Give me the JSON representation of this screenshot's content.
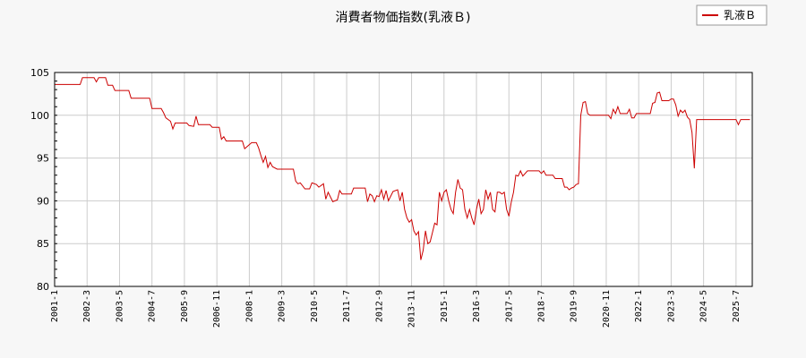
{
  "chart_data": {
    "type": "line",
    "title": "消費者物価指数(乳液Ｂ)",
    "xlabel": "",
    "ylabel": "",
    "ylim": [
      80,
      105
    ],
    "yticks": [
      80,
      85,
      90,
      95,
      100,
      105
    ],
    "xlim": [
      "2001-01",
      "2026-02"
    ],
    "xticks": [
      "2001-1",
      "2002-3",
      "2003-5",
      "2004-7",
      "2005-9",
      "2006-11",
      "2008-1",
      "2009-3",
      "2010-5",
      "2011-7",
      "2012-9",
      "2013-11",
      "2015-1",
      "2016-3",
      "2017-5",
      "2018-7",
      "2019-9",
      "2020-11",
      "2022-1",
      "2023-3",
      "2024-5",
      "2025-7"
    ],
    "grid": true,
    "legend_position": "top-right",
    "series": [
      {
        "name": "乳液Ｂ",
        "color": "#cc0000",
        "points": [
          [
            "2001-01",
            103.6
          ],
          [
            "2001-12",
            103.6
          ],
          [
            "2002-01",
            104.4
          ],
          [
            "2002-06",
            104.4
          ],
          [
            "2002-07",
            103.9
          ],
          [
            "2002-08",
            104.4
          ],
          [
            "2002-11",
            104.4
          ],
          [
            "2002-12",
            103.5
          ],
          [
            "2003-02",
            103.5
          ],
          [
            "2003-03",
            102.9
          ],
          [
            "2003-09",
            102.9
          ],
          [
            "2003-10",
            102.0
          ],
          [
            "2004-06",
            102.0
          ],
          [
            "2004-07",
            100.8
          ],
          [
            "2004-11",
            100.8
          ],
          [
            "2004-12",
            100.3
          ],
          [
            "2005-01",
            99.7
          ],
          [
            "2005-03",
            99.3
          ],
          [
            "2005-04",
            98.4
          ],
          [
            "2005-05",
            99.1
          ],
          [
            "2005-10",
            99.1
          ],
          [
            "2005-11",
            98.8
          ],
          [
            "2006-01",
            98.7
          ],
          [
            "2006-02",
            99.9
          ],
          [
            "2006-03",
            98.9
          ],
          [
            "2006-08",
            98.9
          ],
          [
            "2006-09",
            98.6
          ],
          [
            "2006-12",
            98.6
          ],
          [
            "2007-01",
            97.2
          ],
          [
            "2007-02",
            97.5
          ],
          [
            "2007-03",
            97.0
          ],
          [
            "2007-10",
            97.0
          ],
          [
            "2007-11",
            96.1
          ],
          [
            "2008-02",
            96.8
          ],
          [
            "2008-04",
            96.8
          ],
          [
            "2008-05",
            96.2
          ],
          [
            "2008-06",
            95.3
          ],
          [
            "2008-07",
            94.5
          ],
          [
            "2008-08",
            95.2
          ],
          [
            "2008-09",
            93.9
          ],
          [
            "2008-10",
            94.5
          ],
          [
            "2008-11",
            94.0
          ],
          [
            "2009-01",
            93.7
          ],
          [
            "2009-08",
            93.7
          ],
          [
            "2009-09",
            92.3
          ],
          [
            "2009-10",
            92.0
          ],
          [
            "2009-11",
            92.1
          ],
          [
            "2010-01",
            91.4
          ],
          [
            "2010-03",
            91.4
          ],
          [
            "2010-04",
            92.1
          ],
          [
            "2010-06",
            91.9
          ],
          [
            "2010-07",
            91.6
          ],
          [
            "2010-09",
            92.0
          ],
          [
            "2010-10",
            90.2
          ],
          [
            "2010-11",
            91.0
          ],
          [
            "2011-01",
            89.9
          ],
          [
            "2011-03",
            90.1
          ],
          [
            "2011-04",
            91.2
          ],
          [
            "2011-05",
            90.8
          ],
          [
            "2011-09",
            90.8
          ],
          [
            "2011-10",
            91.5
          ],
          [
            "2012-03",
            91.5
          ],
          [
            "2012-04",
            89.9
          ],
          [
            "2012-05",
            90.8
          ],
          [
            "2012-06",
            90.6
          ],
          [
            "2012-07",
            89.9
          ],
          [
            "2012-08",
            90.6
          ],
          [
            "2012-09",
            90.5
          ],
          [
            "2012-10",
            91.3
          ],
          [
            "2012-11",
            90.2
          ],
          [
            "2012-12",
            91.2
          ],
          [
            "2013-01",
            90.0
          ],
          [
            "2013-03",
            91.1
          ],
          [
            "2013-05",
            91.3
          ],
          [
            "2013-06",
            90.0
          ],
          [
            "2013-07",
            91.0
          ],
          [
            "2013-08",
            89.0
          ],
          [
            "2013-09",
            88.0
          ],
          [
            "2013-10",
            87.5
          ],
          [
            "2013-11",
            87.8
          ],
          [
            "2013-12",
            86.5
          ],
          [
            "2014-01",
            86.0
          ],
          [
            "2014-02",
            86.4
          ],
          [
            "2014-03",
            83.1
          ],
          [
            "2014-04",
            84.2
          ],
          [
            "2014-05",
            86.5
          ],
          [
            "2014-06",
            85.0
          ],
          [
            "2014-07",
            85.2
          ],
          [
            "2014-08",
            86.3
          ],
          [
            "2014-09",
            87.4
          ],
          [
            "2014-10",
            87.2
          ],
          [
            "2014-11",
            91.0
          ],
          [
            "2014-12",
            90.0
          ],
          [
            "2015-01",
            91.0
          ],
          [
            "2015-02",
            91.3
          ],
          [
            "2015-03",
            90.0
          ],
          [
            "2015-04",
            89.0
          ],
          [
            "2015-05",
            88.5
          ],
          [
            "2015-06",
            91.0
          ],
          [
            "2015-07",
            92.5
          ],
          [
            "2015-08",
            91.5
          ],
          [
            "2015-09",
            91.3
          ],
          [
            "2015-10",
            89.0
          ],
          [
            "2015-11",
            88.0
          ],
          [
            "2015-12",
            89.0
          ],
          [
            "2016-01",
            88.0
          ],
          [
            "2016-02",
            87.2
          ],
          [
            "2016-03",
            89.0
          ],
          [
            "2016-04",
            90.2
          ],
          [
            "2016-05",
            88.5
          ],
          [
            "2016-06",
            89.0
          ],
          [
            "2016-07",
            91.3
          ],
          [
            "2016-08",
            90.2
          ],
          [
            "2016-09",
            91.0
          ],
          [
            "2016-10",
            89.0
          ],
          [
            "2016-11",
            88.7
          ],
          [
            "2016-12",
            91.0
          ],
          [
            "2017-01",
            91.0
          ],
          [
            "2017-02",
            90.8
          ],
          [
            "2017-03",
            91.0
          ],
          [
            "2017-04",
            89.0
          ],
          [
            "2017-05",
            88.2
          ],
          [
            "2017-06",
            89.8
          ],
          [
            "2017-07",
            91.0
          ],
          [
            "2017-08",
            93.0
          ],
          [
            "2017-09",
            92.9
          ],
          [
            "2017-10",
            93.5
          ],
          [
            "2017-11",
            92.9
          ],
          [
            "2018-01",
            93.5
          ],
          [
            "2018-06",
            93.5
          ],
          [
            "2018-07",
            93.2
          ],
          [
            "2018-08",
            93.5
          ],
          [
            "2018-09",
            93.0
          ],
          [
            "2018-12",
            93.0
          ],
          [
            "2019-01",
            92.6
          ],
          [
            "2019-04",
            92.6
          ],
          [
            "2019-05",
            91.6
          ],
          [
            "2019-06",
            91.6
          ],
          [
            "2019-07",
            91.3
          ],
          [
            "2019-08",
            91.5
          ],
          [
            "2019-09",
            91.6
          ],
          [
            "2019-10",
            91.9
          ],
          [
            "2019-11",
            92.0
          ],
          [
            "2019-12",
            100.0
          ],
          [
            "2020-01",
            101.5
          ],
          [
            "2020-02",
            101.6
          ],
          [
            "2020-03",
            100.2
          ],
          [
            "2020-04",
            100.0
          ],
          [
            "2020-12",
            100.0
          ],
          [
            "2021-01",
            99.6
          ],
          [
            "2021-02",
            100.7
          ],
          [
            "2021-03",
            100.2
          ],
          [
            "2021-04",
            101.0
          ],
          [
            "2021-05",
            100.2
          ],
          [
            "2021-08",
            100.2
          ],
          [
            "2021-09",
            100.7
          ],
          [
            "2021-10",
            99.7
          ],
          [
            "2021-11",
            99.7
          ],
          [
            "2021-12",
            100.2
          ],
          [
            "2022-06",
            100.2
          ],
          [
            "2022-07",
            101.4
          ],
          [
            "2022-08",
            101.5
          ],
          [
            "2022-09",
            102.6
          ],
          [
            "2022-10",
            102.7
          ],
          [
            "2022-11",
            101.7
          ],
          [
            "2023-02",
            101.7
          ],
          [
            "2023-03",
            101.9
          ],
          [
            "2023-04",
            101.9
          ],
          [
            "2023-05",
            101.2
          ],
          [
            "2023-06",
            99.9
          ],
          [
            "2023-07",
            100.6
          ],
          [
            "2023-08",
            100.3
          ],
          [
            "2023-09",
            100.6
          ],
          [
            "2023-10",
            99.8
          ],
          [
            "2023-11",
            99.5
          ],
          [
            "2023-12",
            98.0
          ],
          [
            "2024-01",
            93.8
          ],
          [
            "2024-02",
            99.5
          ],
          [
            "2025-07",
            99.5
          ],
          [
            "2025-08",
            98.9
          ],
          [
            "2025-09",
            99.5
          ],
          [
            "2026-01",
            99.5
          ]
        ]
      }
    ]
  }
}
